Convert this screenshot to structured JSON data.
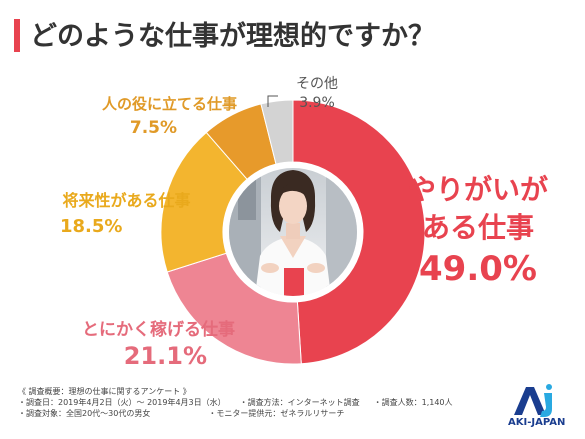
{
  "title": "どのような仕事が理想的ですか？",
  "chart_data": {
    "type": "pie",
    "title": "どのような仕事が理想的ですか？",
    "slices": [
      {
        "label": "やりがいがある仕事",
        "value": 49.0,
        "value_text": "49.0%",
        "color": "#e8434f"
      },
      {
        "label": "とにかく稼げる仕事",
        "value": 21.1,
        "value_text": "21.1%",
        "color": "#ee8593"
      },
      {
        "label": "将来性がある仕事",
        "value": 18.5,
        "value_text": "18.5%",
        "color": "#f3b52f"
      },
      {
        "label": "人の役に立てる仕事",
        "value": 7.5,
        "value_text": "7.5%",
        "color": "#e79a2b"
      },
      {
        "label": "その他",
        "value": 3.9,
        "value_text": "3.9%",
        "color": "#d3d3d3"
      }
    ],
    "center_image": "woman-photo"
  },
  "labels": {
    "work_line1": "やりがいが",
    "work_line2": "ある仕事"
  },
  "notes": {
    "heading": "《 調査概要：理想の仕事に関するアンケート 》",
    "date": "・調査日：2019年4月2日（火）～ 2019年4月3日（水）",
    "method": "・調査方法：インターネット調査",
    "count": "・調査人数：1,140人",
    "target": "・調査対象：全国20代～30代の男女",
    "provider": "・モニター提供元：ゼネラルリサーチ"
  },
  "logo": {
    "text": "AKI-JAPAN",
    "colors": {
      "navy": "#1a3d8f",
      "cyan": "#29a9e1"
    }
  }
}
